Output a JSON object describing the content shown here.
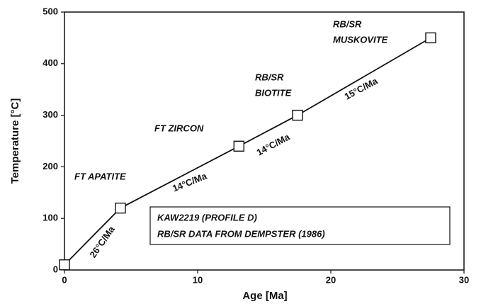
{
  "chart_data": {
    "type": "line",
    "xlabel": "Age [Ma]",
    "ylabel": "Temperature [°C]",
    "x": [
      0,
      4.2,
      13.1,
      17.5,
      27.5
    ],
    "series": [
      {
        "color": "#111111",
        "values": [
          10,
          120,
          240,
          300,
          450
        ]
      }
    ],
    "xlim": [
      0,
      30
    ],
    "xticks": [
      0,
      10,
      20,
      30
    ],
    "ylim": [
      0,
      500
    ],
    "yticks": [
      0,
      100,
      200,
      300,
      400,
      500
    ],
    "annotations": [
      "FT APATITE",
      "FT ZIRCON",
      "RB/SR",
      "BIOTITE",
      "RB/SR",
      "MUSKOVITE",
      "26°C/Ma",
      "14°C/Ma",
      "14°C/Ma",
      "15°C/Ma"
    ],
    "legend_box": [
      "KAW2219 (PROFILE D)",
      "RB/SR DATA FROM DEMPSTER (1986)"
    ]
  }
}
